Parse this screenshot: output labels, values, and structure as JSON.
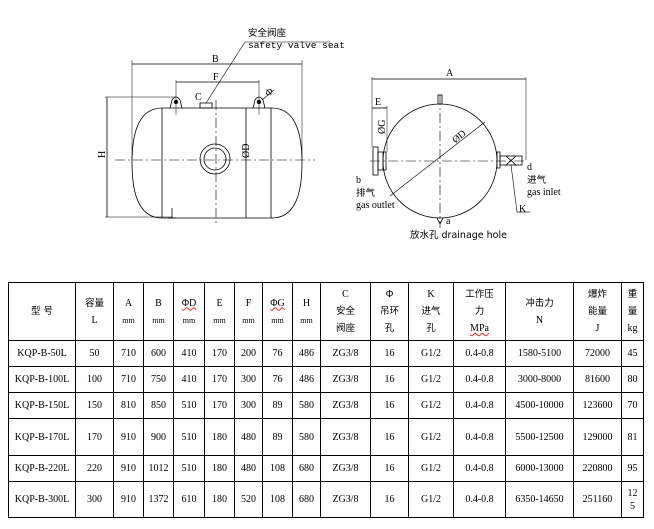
{
  "drawing": {
    "side_view": {
      "callout_cn": "安全阀座",
      "callout_en": "safety valve seat",
      "dim_B": "B",
      "dim_F": "F",
      "dim_H": "H",
      "label_C": "C",
      "label_phi": "Φ",
      "label_D": "ØD"
    },
    "end_view": {
      "dim_A": "A",
      "dim_E": "E",
      "label_G": "ØG",
      "label_D": "ØD",
      "b": "b",
      "outlet_cn": "排气",
      "outlet_en": "gas  outlet",
      "d": "d",
      "inlet_cn": "进气",
      "inlet_en": "gas  inlet",
      "K": "K",
      "a": "a",
      "drain": "放水孔  drainage hole"
    }
  },
  "table": {
    "headers": [
      {
        "lines": [
          "型  号"
        ]
      },
      {
        "lines": [
          "容量",
          "L"
        ]
      },
      {
        "lines": [
          "A",
          "mm"
        ]
      },
      {
        "lines": [
          "B",
          "mm"
        ]
      },
      {
        "lines": [
          "ΦD",
          "mm"
        ]
      },
      {
        "lines": [
          "E",
          "mm"
        ]
      },
      {
        "lines": [
          "F",
          "mm"
        ]
      },
      {
        "lines": [
          "ΦG",
          "mm"
        ]
      },
      {
        "lines": [
          "H",
          "mm"
        ]
      },
      {
        "lines": [
          "C",
          "安全",
          "阀座"
        ]
      },
      {
        "lines": [
          "Φ",
          "吊环",
          "孔"
        ]
      },
      {
        "lines": [
          "K",
          "进气",
          "孔"
        ]
      },
      {
        "lines": [
          "工作压",
          "力",
          "MPa"
        ]
      },
      {
        "lines": [
          "冲击力",
          "N"
        ]
      },
      {
        "lines": [
          "爆炸",
          "能量",
          "J"
        ]
      },
      {
        "lines": [
          "重",
          "量",
          "kg"
        ]
      }
    ],
    "rows": [
      [
        "KQP-B-50L",
        "50",
        "710",
        "600",
        "410",
        "170",
        "200",
        "76",
        "486",
        "ZG3/8",
        "16",
        "G1/2",
        "0.4-0.8",
        "1580-5100",
        "72000",
        "45"
      ],
      [
        "KQP-B-100L",
        "100",
        "710",
        "750",
        "410",
        "170",
        "300",
        "76",
        "486",
        "ZG3/8",
        "16",
        "G1/2",
        "0.4-0.8",
        "3000-8000",
        "81600",
        "80"
      ],
      [
        "KQP-B-150L",
        "150",
        "810",
        "850",
        "510",
        "170",
        "300",
        "89",
        "580",
        "ZG3/8",
        "16",
        "G1/2",
        "0.4-0.8",
        "4500-10000",
        "123600",
        "70"
      ],
      [
        "KQP-B-170L",
        "170",
        "910",
        "900",
        "510",
        "180",
        "480",
        "89",
        "580",
        "ZG3/8",
        "16",
        "G1/2",
        "0.4-0.8",
        "5500-12500",
        "129000",
        "81"
      ],
      [
        "KQP-B-220L",
        "220",
        "910",
        "1012",
        "510",
        "180",
        "480",
        "108",
        "680",
        "ZG3/8",
        "16",
        "G1/2",
        "0.4-0.8",
        "6000-13000",
        "220800",
        "95"
      ],
      [
        "KQP-B-300L",
        "300",
        "910",
        "1372",
        "610",
        "180",
        "520",
        "108",
        "680",
        "ZG3/8",
        "16",
        "G1/2",
        "0.4-0.8",
        "6350-14650",
        "251160",
        "125"
      ]
    ]
  }
}
